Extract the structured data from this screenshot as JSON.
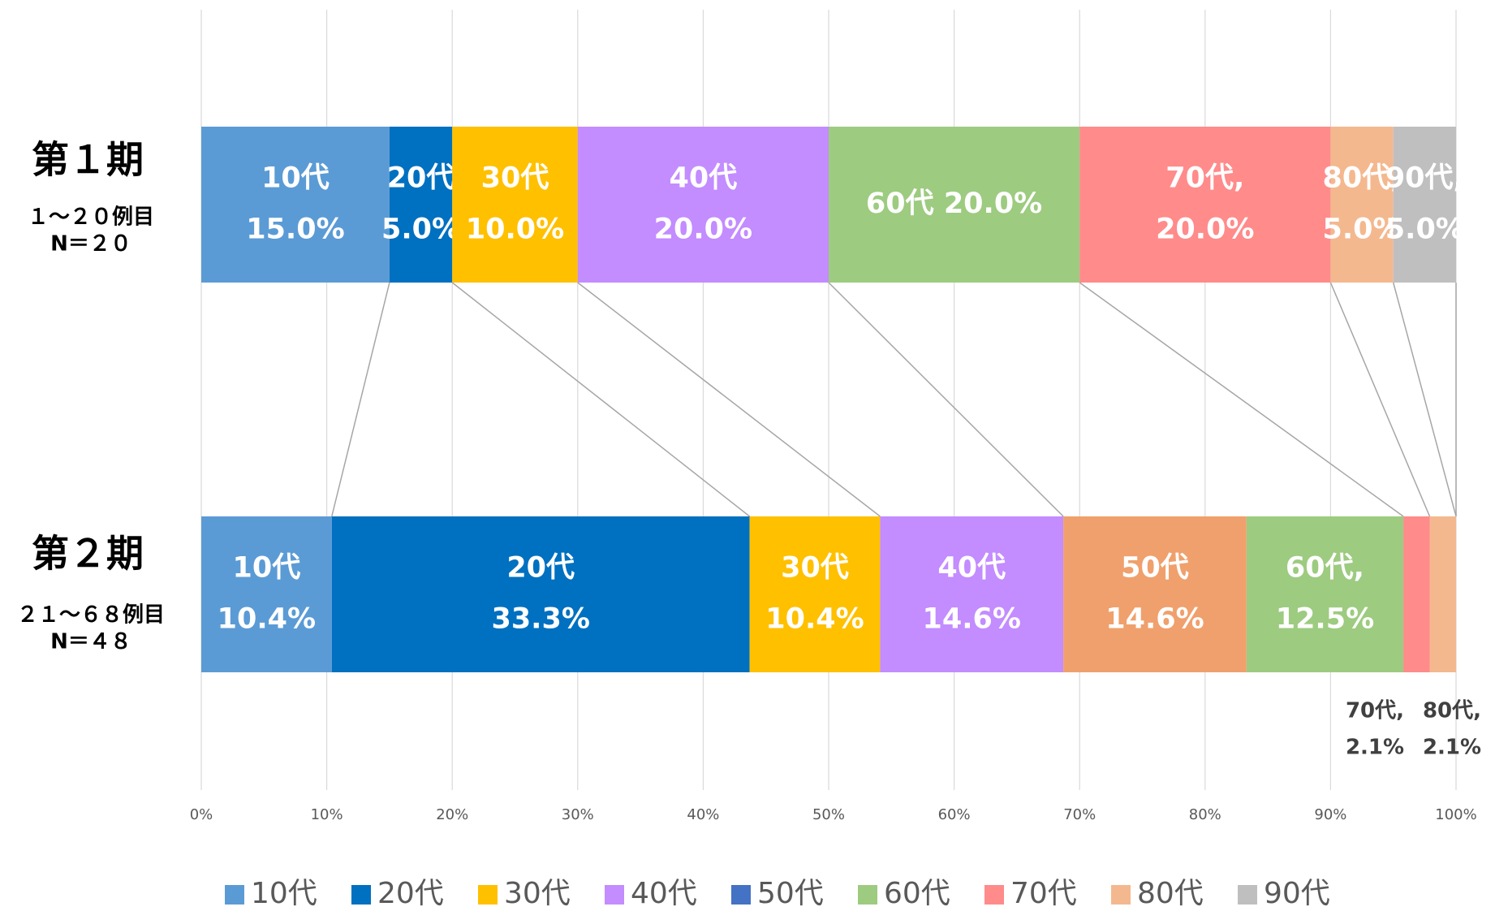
{
  "chart_data": {
    "type": "stacked-bar-100",
    "categories": [
      "第１期",
      "第２期"
    ],
    "category_notes": [
      [
        "１～２０例目",
        "N＝２０"
      ],
      [
        "２１～６８例目",
        "N＝４８"
      ]
    ],
    "series": [
      {
        "name": "10代",
        "color": "#5b9bd5",
        "values": [
          15.0,
          10.4
        ],
        "value_labels": [
          [
            "10代",
            "15.0%"
          ],
          [
            "10代",
            "10.4%"
          ]
        ]
      },
      {
        "name": "20代",
        "color": "#0070c0",
        "values": [
          5.0,
          33.3
        ],
        "value_labels": [
          [
            "20代",
            "5.0%"
          ],
          [
            "20代",
            "33.3%"
          ]
        ]
      },
      {
        "name": "30代",
        "color": "#ffc000",
        "values": [
          10.0,
          10.4
        ],
        "value_labels": [
          [
            "30代",
            "10.0%"
          ],
          [
            "30代",
            "10.4%"
          ]
        ]
      },
      {
        "name": "40代",
        "color": "#c38cff",
        "values": [
          20.0,
          14.6
        ],
        "value_labels": [
          [
            "40代",
            "20.0%"
          ],
          [
            "40代",
            "14.6%"
          ]
        ]
      },
      {
        "name": "50代",
        "color": "#4472c4",
        "bar_colors": [
          "#4472c4",
          "#f0a06c"
        ],
        "values": [
          0,
          14.6
        ],
        "value_labels": [
          null,
          [
            "50代",
            "14.6%"
          ]
        ]
      },
      {
        "name": "60代",
        "color": "#9dcb80",
        "values": [
          20.0,
          12.5
        ],
        "value_labels": [
          [
            "60代 20.0%"
          ],
          [
            "60代,",
            "12.5%"
          ]
        ]
      },
      {
        "name": "70代",
        "color": "#ff8b8b",
        "values": [
          20.0,
          2.1
        ],
        "value_labels": [
          [
            "70代,",
            "20.0%"
          ],
          [
            "70代,",
            "2.1%"
          ]
        ]
      },
      {
        "name": "80代",
        "color": "#f4b88f",
        "values": [
          5.0,
          2.1
        ],
        "value_labels": [
          [
            "80代,",
            "5.0%"
          ],
          [
            "80代,",
            "2.1%"
          ]
        ]
      },
      {
        "name": "90代",
        "color": "#bfbfbf",
        "values": [
          5.0,
          0
        ],
        "value_labels": [
          [
            "90代,",
            "5.0%"
          ],
          null
        ]
      }
    ],
    "xlim": [
      0,
      100
    ],
    "xticks": [
      {
        "value": 0,
        "label": "0%"
      },
      {
        "value": 10,
        "label": "10%"
      },
      {
        "value": 20,
        "label": "20%"
      },
      {
        "value": 30,
        "label": "30%"
      },
      {
        "value": 40,
        "label": "40%"
      },
      {
        "value": 50,
        "label": "50%"
      },
      {
        "value": 60,
        "label": "60%"
      },
      {
        "value": 70,
        "label": "70%"
      },
      {
        "value": 80,
        "label": "80%"
      },
      {
        "value": 90,
        "label": "90%"
      },
      {
        "value": 100,
        "label": "100%"
      }
    ],
    "grid": true,
    "legend": "bottom",
    "connector_lines": true
  }
}
